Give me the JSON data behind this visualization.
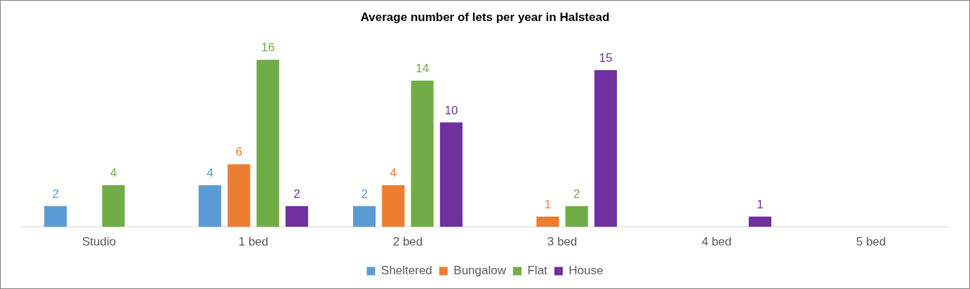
{
  "chart_data": {
    "type": "bar",
    "title": "Average number of lets per year in Halstead",
    "categories": [
      "Studio",
      "1 bed",
      "2 bed",
      "3 bed",
      "4 bed",
      "5 bed"
    ],
    "series": [
      {
        "name": "Sheltered",
        "color": "#5b9bd5",
        "values": [
          2,
          4,
          2,
          null,
          null,
          null
        ]
      },
      {
        "name": "Bungalow",
        "color": "#ed7d31",
        "values": [
          null,
          6,
          4,
          1,
          null,
          null
        ]
      },
      {
        "name": "Flat",
        "color": "#70ad47",
        "values": [
          4,
          16,
          14,
          2,
          null,
          null
        ]
      },
      {
        "name": "House",
        "color": "#7030a0",
        "values": [
          null,
          2,
          10,
          15,
          1,
          null
        ]
      }
    ],
    "data_labels": true,
    "grid": false,
    "legend": "bottom"
  }
}
